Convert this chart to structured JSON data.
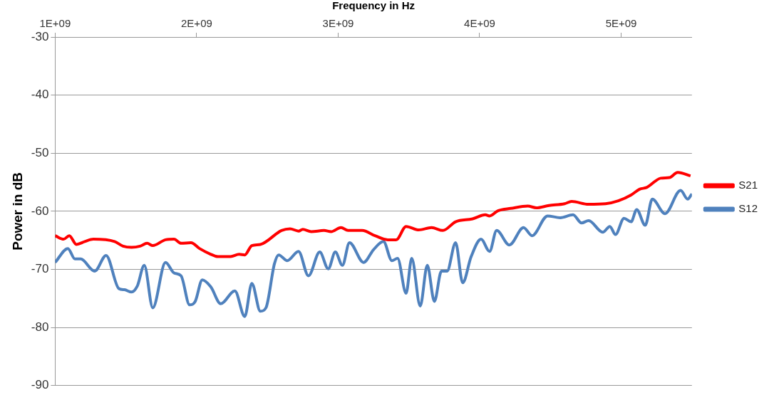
{
  "chart_data": {
    "type": "line",
    "xlabel": "Frequency in Hz",
    "ylabel": "Power in dB",
    "xlim": [
      1000000000.0,
      5500000000.0
    ],
    "xticks": [
      {
        "value": 1000000000.0,
        "label": "1E+09"
      },
      {
        "value": 2000000000.0,
        "label": "2E+09"
      },
      {
        "value": 3000000000.0,
        "label": "3E+09"
      },
      {
        "value": 4000000000.0,
        "label": "4E+09"
      },
      {
        "value": 5000000000.0,
        "label": "5E+09"
      }
    ],
    "ylim": [
      -90,
      -30
    ],
    "yticks": [
      -90,
      -80,
      -70,
      -60,
      -50,
      -40,
      -30
    ],
    "grid": "y",
    "legend": "right",
    "marker": "none",
    "line_style": "solid",
    "series": [
      {
        "name": "S21",
        "color": "#ff0000",
        "x": [
          1000000000.0,
          1060000000.0,
          1100000000.0,
          1150000000.0,
          1210000000.0,
          1270000000.0,
          1420000000.0,
          1480000000.0,
          1540000000.0,
          1600000000.0,
          1650000000.0,
          1690000000.0,
          1780000000.0,
          1840000000.0,
          1890000000.0,
          1960000000.0,
          2020000000.0,
          2100000000.0,
          2150000000.0,
          2240000000.0,
          2300000000.0,
          2340000000.0,
          2390000000.0,
          2450000000.0,
          2600000000.0,
          2660000000.0,
          2720000000.0,
          2750000000.0,
          2810000000.0,
          2900000000.0,
          2950000000.0,
          3020000000.0,
          3070000000.0,
          3170000000.0,
          3260000000.0,
          3350000000.0,
          3410000000.0,
          3480000000.0,
          3570000000.0,
          3660000000.0,
          3740000000.0,
          3830000000.0,
          3950000000.0,
          4040000000.0,
          4070000000.0,
          4130000000.0,
          4220000000.0,
          4340000000.0,
          4400000000.0,
          4490000000.0,
          4600000000.0,
          4650000000.0,
          4770000000.0,
          4890000000.0,
          4980000000.0,
          5070000000.0,
          5130000000.0,
          5180000000.0,
          5280000000.0,
          5340000000.0,
          5400000000.0,
          5490000000.0
        ],
        "values": [
          -64.2,
          -64.8,
          -64.2,
          -65.7,
          -65.2,
          -64.8,
          -65.2,
          -66.0,
          -66.2,
          -66.0,
          -65.5,
          -65.9,
          -64.9,
          -64.8,
          -65.5,
          -65.4,
          -66.4,
          -67.4,
          -67.8,
          -67.8,
          -67.4,
          -67.5,
          -65.9,
          -65.7,
          -63.3,
          -63.0,
          -63.4,
          -63.1,
          -63.5,
          -63.3,
          -63.5,
          -62.8,
          -63.3,
          -63.3,
          -64.2,
          -64.9,
          -64.9,
          -62.6,
          -63.2,
          -62.8,
          -63.3,
          -61.8,
          -61.3,
          -60.6,
          -60.8,
          -59.9,
          -59.5,
          -59.1,
          -59.4,
          -59.0,
          -58.7,
          -58.3,
          -58.8,
          -58.7,
          -58.2,
          -57.2,
          -56.2,
          -55.9,
          -54.3,
          -54.2,
          -53.3,
          -53.9
        ]
      },
      {
        "name": "S12",
        "color": "#4f81bd",
        "x": [
          1000000000.0,
          1090000000.0,
          1140000000.0,
          1180000000.0,
          1280000000.0,
          1360000000.0,
          1450000000.0,
          1490000000.0,
          1540000000.0,
          1580000000.0,
          1630000000.0,
          1690000000.0,
          1780000000.0,
          1840000000.0,
          1890000000.0,
          1950000000.0,
          1990000000.0,
          2040000000.0,
          2100000000.0,
          2170000000.0,
          2270000000.0,
          2340000000.0,
          2390000000.0,
          2450000000.0,
          2490000000.0,
          2550000000.0,
          2580000000.0,
          2640000000.0,
          2720000000.0,
          2790000000.0,
          2870000000.0,
          2930000000.0,
          2980000000.0,
          3030000000.0,
          3080000000.0,
          3180000000.0,
          3250000000.0,
          3320000000.0,
          3380000000.0,
          3420000000.0,
          3480000000.0,
          3520000000.0,
          3580000000.0,
          3630000000.0,
          3680000000.0,
          3730000000.0,
          3770000000.0,
          3830000000.0,
          3880000000.0,
          3940000000.0,
          4010000000.0,
          4070000000.0,
          4120000000.0,
          4210000000.0,
          4310000000.0,
          4370000000.0,
          4480000000.0,
          4570000000.0,
          4660000000.0,
          4720000000.0,
          4770000000.0,
          4870000000.0,
          4920000000.0,
          4960000000.0,
          5020000000.0,
          5070000000.0,
          5110000000.0,
          5170000000.0,
          5220000000.0,
          5310000000.0,
          5420000000.0,
          5470000000.0,
          5500000000.0
        ],
        "values": [
          -68.8,
          -66.4,
          -68.2,
          -68.2,
          -70.3,
          -67.6,
          -73.3,
          -73.5,
          -73.9,
          -72.9,
          -69.3,
          -76.6,
          -68.8,
          -70.6,
          -71.1,
          -76.1,
          -75.5,
          -71.8,
          -73.0,
          -75.9,
          -73.7,
          -78.1,
          -72.4,
          -77.2,
          -76.6,
          -69.0,
          -67.5,
          -68.5,
          -66.9,
          -71.1,
          -67.0,
          -69.9,
          -67.0,
          -69.3,
          -65.4,
          -68.8,
          -66.6,
          -65.2,
          -68.5,
          -68.1,
          -74.1,
          -68.1,
          -76.3,
          -69.3,
          -75.5,
          -70.3,
          -70.3,
          -65.4,
          -72.3,
          -67.8,
          -64.8,
          -66.9,
          -63.3,
          -65.8,
          -62.8,
          -64.2,
          -60.8,
          -61.1,
          -60.6,
          -62.0,
          -61.6,
          -63.6,
          -62.6,
          -64.0,
          -61.2,
          -61.8,
          -59.7,
          -62.4,
          -57.9,
          -60.4,
          -56.4,
          -57.9,
          -57.0
        ]
      }
    ]
  }
}
